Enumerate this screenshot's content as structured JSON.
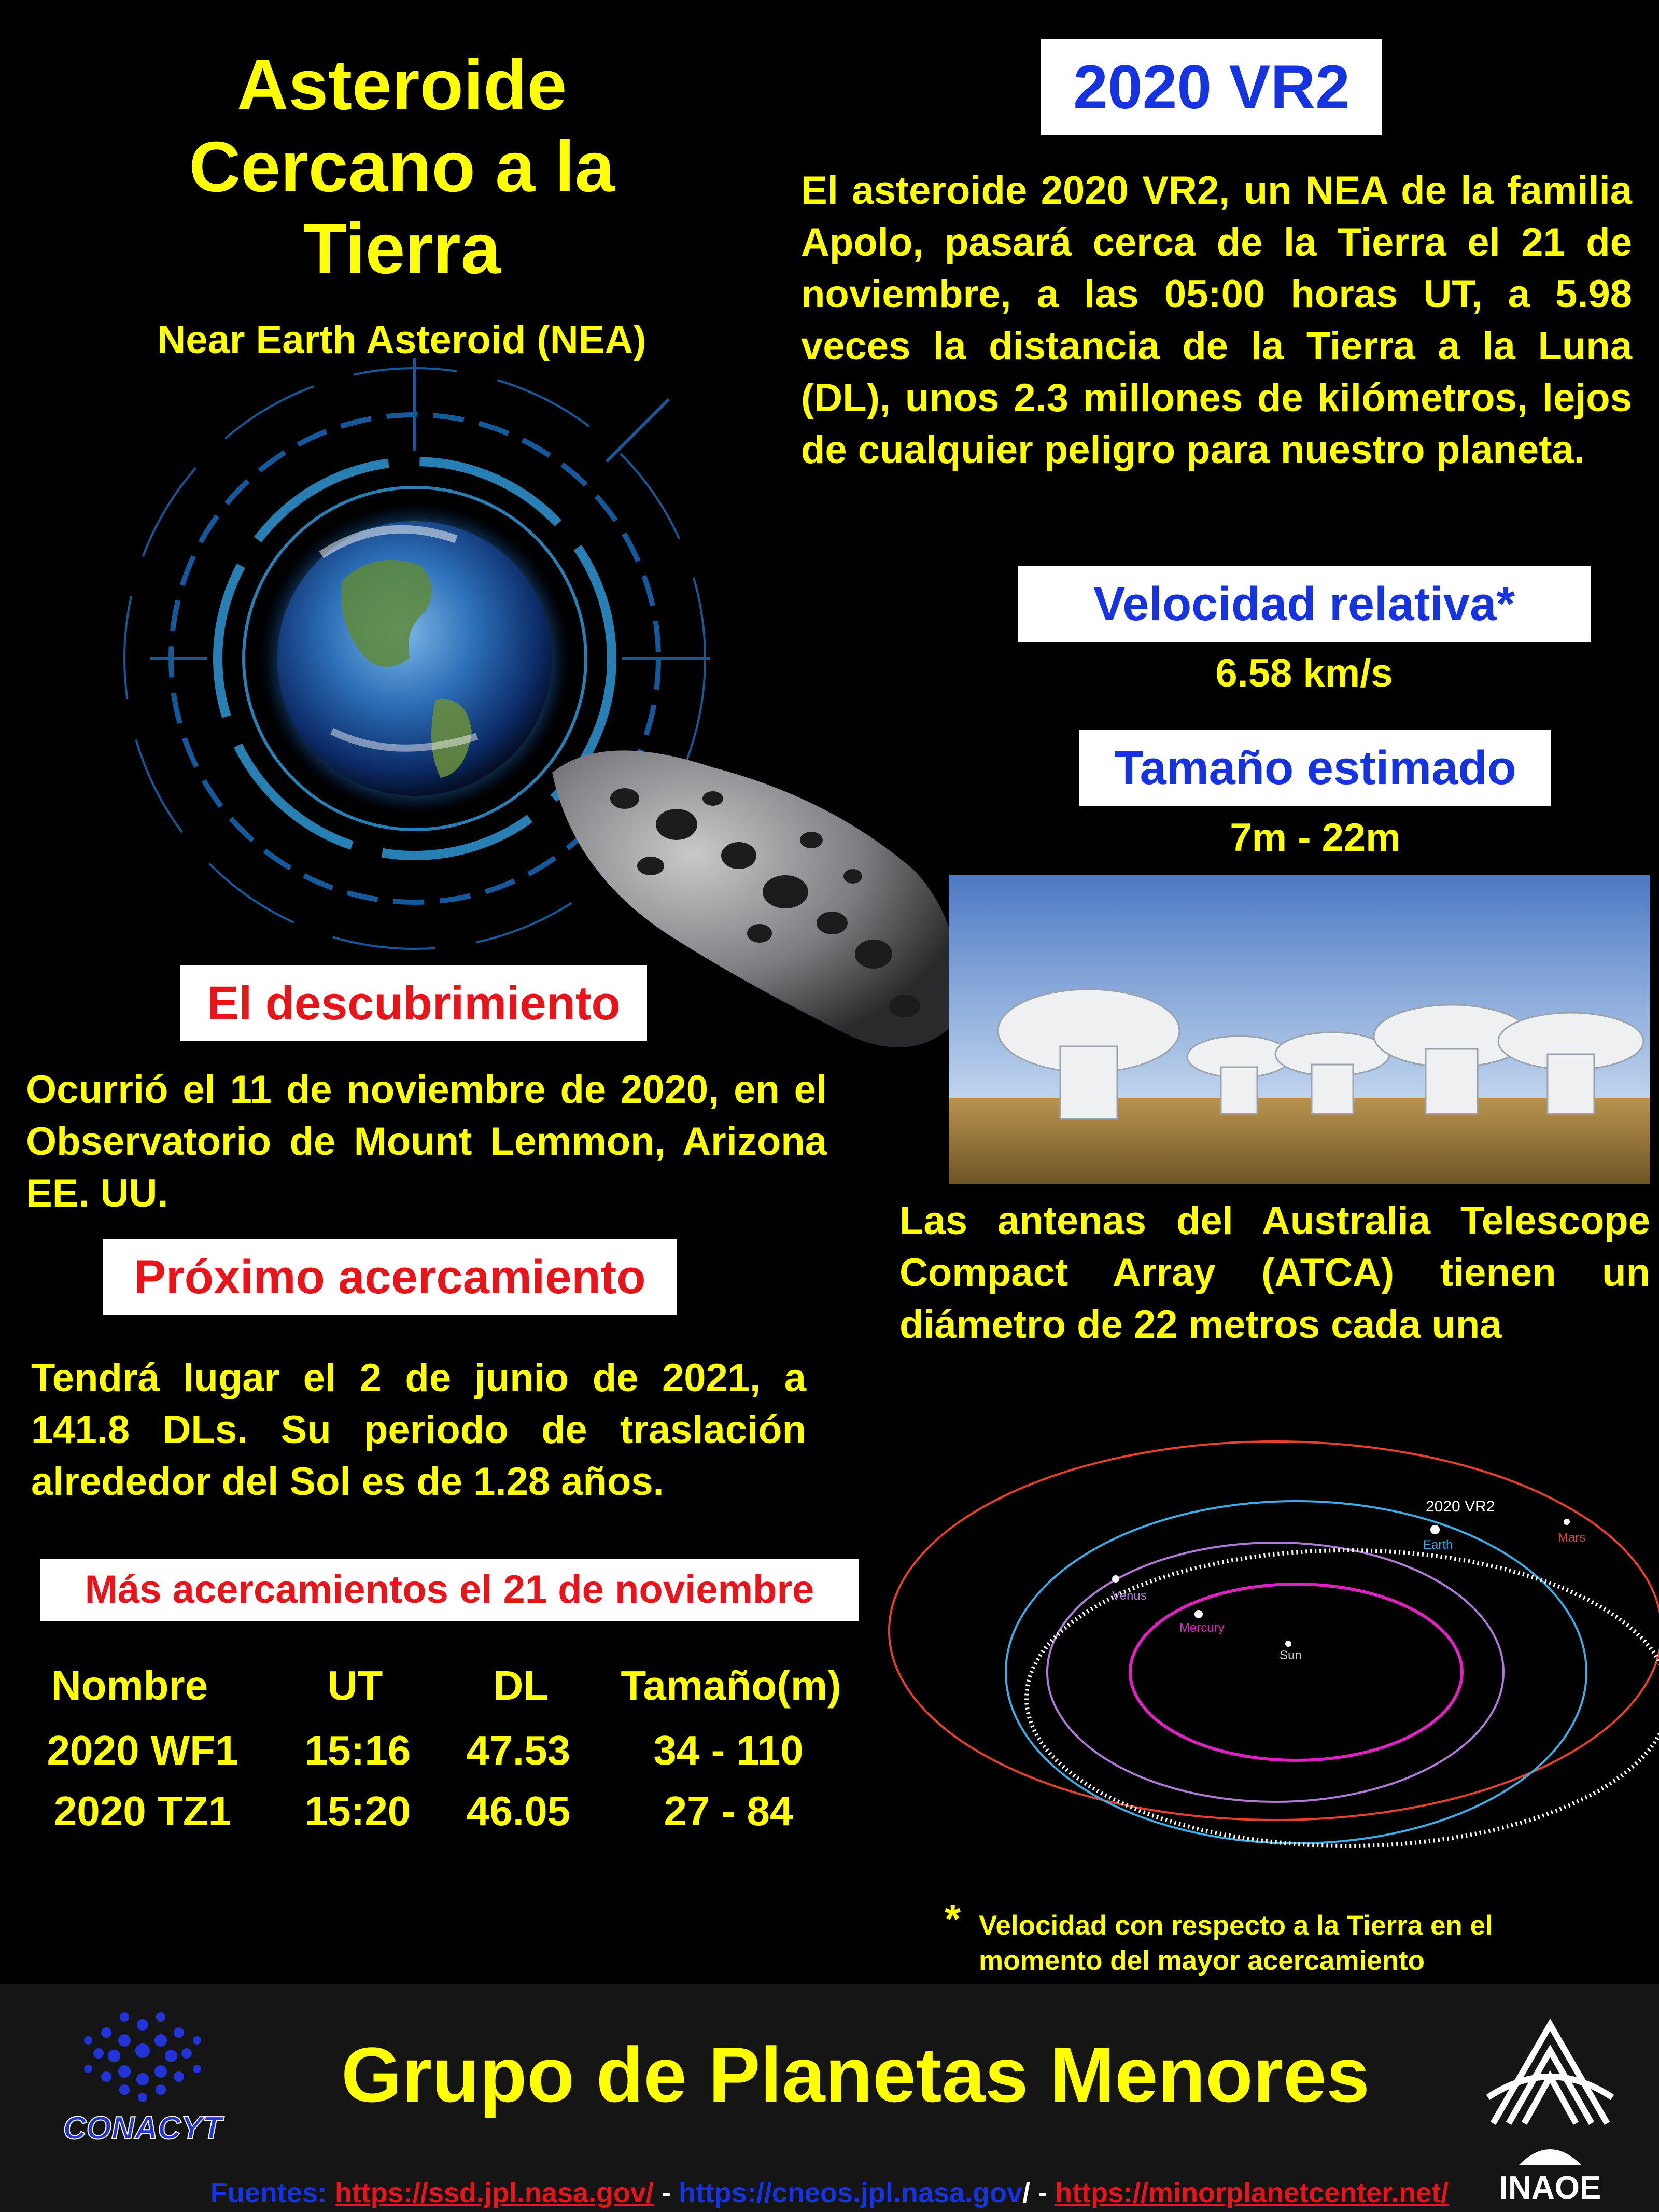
{
  "header": {
    "title_lines": [
      "Asteroide",
      "Cercano a la",
      "Tierra"
    ],
    "subtitle": "Near Earth Asteroid (NEA)"
  },
  "asteroid": {
    "name": "2020 VR2",
    "intro": "El  asteroide 2020 VR2, un NEA de  la familia Apolo, pasará cerca de la Tierra el 21 de noviembre, a las 05:00 horas UT, a 5.98 veces la distancia de la Tierra a la Luna (DL), unos 2.3 millones de kilómetros, lejos de cualquier peligro para nuestro planeta."
  },
  "velocity": {
    "label": "Velocidad relativa*",
    "value": "6.58 km/s"
  },
  "size": {
    "label": "Tamaño estimado",
    "value": "7m - 22m"
  },
  "atca": {
    "caption": "Las antenas del Australia Telescope Compact Array (ATCA) tienen un diámetro de 22 metros cada una"
  },
  "discovery": {
    "label": "El descubrimiento",
    "text": "Ocurrió el 11 de noviembre de 2020, en el Observatorio de Mount Lemmon, Arizona EE. UU."
  },
  "next_approach": {
    "label": "Próximo acercamiento",
    "text": "Tendrá lugar el 2 de junio de 2021, a 141.8 DLs. Su periodo de traslación alrededor del Sol es de 1.28  años."
  },
  "more_approaches": {
    "label": "Más acercamientos el 21 de noviembre",
    "headers": [
      "Nombre",
      "UT",
      "DL",
      "Tamaño(m)"
    ],
    "rows": [
      [
        "2020 WF1",
        "15:16",
        "47.53",
        "34 -  110"
      ],
      [
        "2020 TZ1",
        "15:20",
        "46.05",
        "27 - 84"
      ]
    ]
  },
  "orbit_diagram": {
    "object_label": "2020 VR2",
    "bodies": [
      "Sun",
      "Mercury",
      "Venus",
      "Earth",
      "Mars"
    ],
    "colors": {
      "mars": "#e8402a",
      "earth": "#3aaee8",
      "venus": "#b07ad8",
      "mercury": "#e020c0",
      "asteroid": "#ffffff"
    }
  },
  "footnote": {
    "star": "*",
    "text": "Velocidad con respecto a la Tierra en el momento del mayor acercamiento"
  },
  "footer": {
    "title": "Grupo de Planetas Menores",
    "logo_left": "CONACYT",
    "logo_right": "INAOE",
    "sources_label": "Fuentes:",
    "source1": "https://ssd.jpl.nasa.gov/",
    "source2": "https://cneos.jpl.nasa.gov",
    "source2_tail": "/",
    "source3": "https://minorplanetcenter.net/"
  },
  "colors": {
    "yellow": "#ffff00",
    "blue": "#1533e0",
    "red": "#e8141a",
    "background": "#000000"
  }
}
